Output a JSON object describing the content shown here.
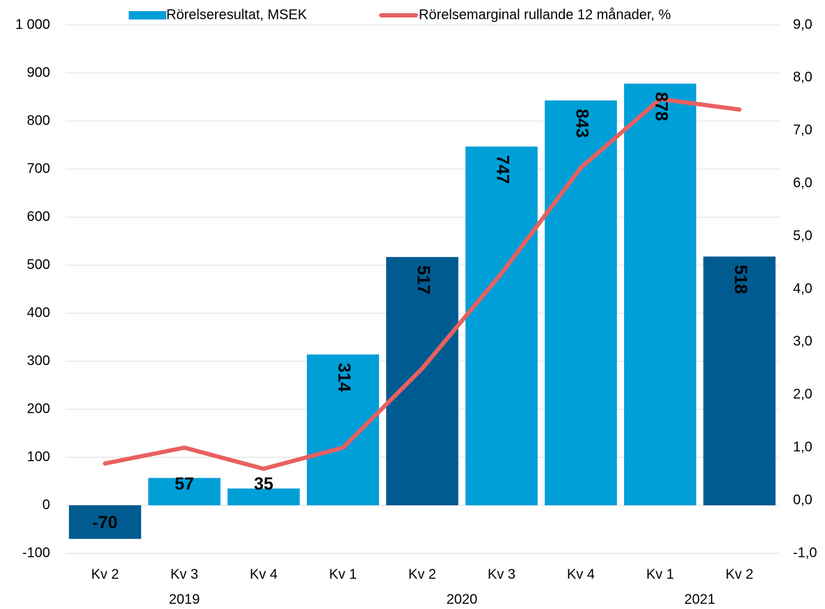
{
  "chart_data": {
    "type": "bar",
    "category_groups": [
      {
        "label": "2019",
        "categories": [
          "Kv 2",
          "Kv 3",
          "Kv 4"
        ]
      },
      {
        "label": "2020",
        "categories": [
          "Kv 1",
          "Kv 2",
          "Kv 3",
          "Kv 4"
        ]
      },
      {
        "label": "2021",
        "categories": [
          "Kv 1",
          "Kv 2"
        ]
      }
    ],
    "series": [
      {
        "name": "Rörelseresultat, MSEK",
        "type": "bar",
        "color": "#009fd8",
        "bar_colors": [
          "#005b91",
          "#009fd8",
          "#009fd8",
          "#009fd8",
          "#005b91",
          "#009fd8",
          "#009fd8",
          "#009fd8",
          "#005b91"
        ],
        "value_label_colors": [
          "#ffffff",
          "#ffffff",
          "#0d2b4e",
          "#ffffff",
          "#ffffff",
          "#ffffff",
          "#ffffff",
          "#ffffff",
          "#ffffff"
        ],
        "values": [
          -70,
          57,
          35,
          314,
          517,
          747,
          843,
          878,
          518
        ]
      },
      {
        "name": "Rörelsemarginal rullande 12 månader, %",
        "type": "line",
        "axis": "y2",
        "color": "#e8605f",
        "values": [
          0.7,
          1.0,
          0.6,
          1.0,
          2.5,
          4.3,
          6.3,
          7.6,
          7.4
        ]
      }
    ],
    "ylim": [
      -100,
      1000
    ],
    "yticks": [
      -100,
      0,
      100,
      200,
      300,
      400,
      500,
      600,
      700,
      800,
      900,
      {
        "value": 1000,
        "label": "1 000"
      }
    ],
    "y2lim": [
      -1,
      9
    ],
    "y2ticks": [
      {
        "value": -1,
        "label": "-1,0"
      },
      {
        "value": 0,
        "label": "0,0"
      },
      {
        "value": 1,
        "label": "1,0"
      },
      {
        "value": 2,
        "label": "2,0"
      },
      {
        "value": 3,
        "label": "3,0"
      },
      {
        "value": 4,
        "label": "4,0"
      },
      {
        "value": 5,
        "label": "5,0"
      },
      {
        "value": 6,
        "label": "6,0"
      },
      {
        "value": 7,
        "label": "7,0"
      },
      {
        "value": 8,
        "label": "8,0"
      },
      {
        "value": 9,
        "label": "9,0"
      }
    ],
    "grid": true,
    "legend": "top"
  }
}
